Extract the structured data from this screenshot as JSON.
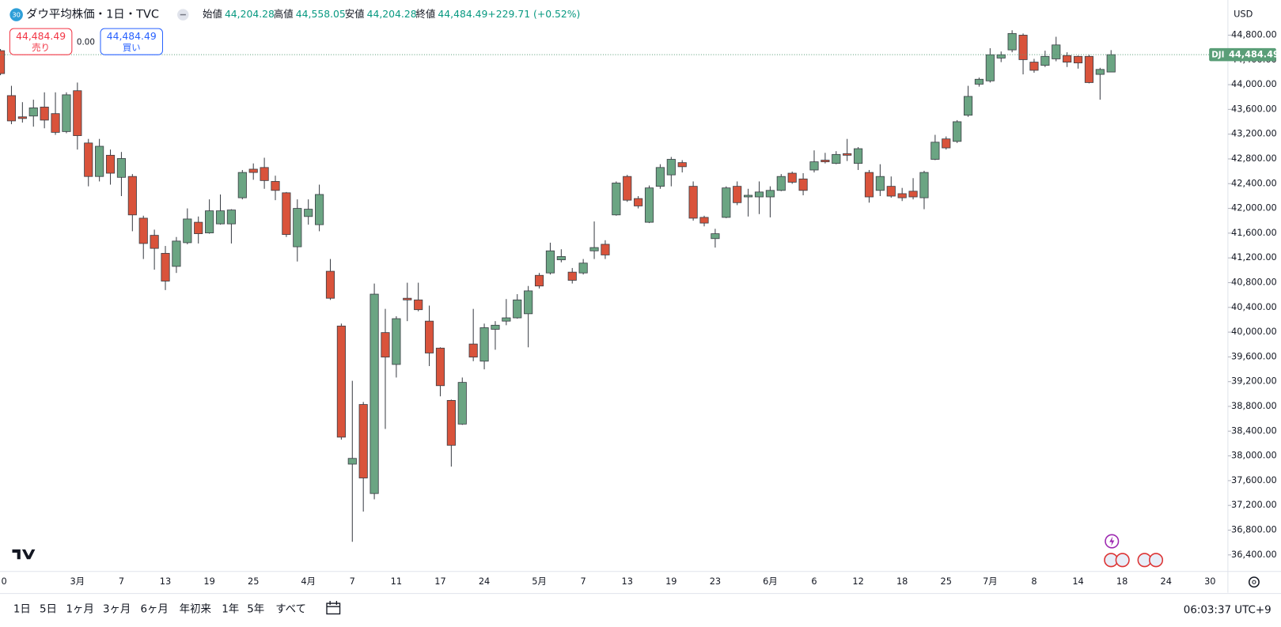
{
  "header": {
    "badge": "30",
    "title": "ダウ平均株価・1日・TVC",
    "open_label": "始値",
    "open": "44,204.28",
    "high_label": "高値",
    "high": "44,558.05",
    "low_label": "安値",
    "low": "44,204.28",
    "close_label": "終値",
    "close": "44,484.49",
    "change": "+229.71 (+0.52%)"
  },
  "trade": {
    "sell_price": "44,484.49",
    "sell_label": "売り",
    "spread": "0.00",
    "buy_price": "44,484.49",
    "buy_label": "買い"
  },
  "currency": "USD",
  "ranges": [
    "1日",
    "5日",
    "1ヶ月",
    "3ヶ月",
    "6ヶ月",
    "年初来",
    "1年",
    "5年",
    "すべて"
  ],
  "clock": "06:03:37 UTC+9",
  "chart_data": {
    "type": "candlestick",
    "up_color": "#6ba583",
    "down_color": "#d9533b",
    "grid": false,
    "ylim": [
      36132,
      45368
    ],
    "yticks": [
      {
        "value": 36400,
        "label": "36,400.00"
      },
      {
        "value": 36800,
        "label": "36,800.00"
      },
      {
        "value": 37200,
        "label": "37,200.00"
      },
      {
        "value": 37600,
        "label": "37,600.00"
      },
      {
        "value": 38000,
        "label": "38,000.00"
      },
      {
        "value": 38400,
        "label": "38,400.00"
      },
      {
        "value": 38800,
        "label": "38,800.00"
      },
      {
        "value": 39200,
        "label": "39,200.00"
      },
      {
        "value": 39600,
        "label": "39,600.00"
      },
      {
        "value": 40000,
        "label": "40,000.00"
      },
      {
        "value": 40400,
        "label": "40,400.00"
      },
      {
        "value": 40800,
        "label": "40,800.00"
      },
      {
        "value": 41200,
        "label": "41,200.00"
      },
      {
        "value": 41600,
        "label": "41,600.00"
      },
      {
        "value": 42000,
        "label": "42,000.00"
      },
      {
        "value": 42400,
        "label": "42,400.00"
      },
      {
        "value": 42800,
        "label": "42,800.00"
      },
      {
        "value": 43200,
        "label": "43,200.00"
      },
      {
        "value": 43600,
        "label": "43,600.00"
      },
      {
        "value": 44000,
        "label": "44,000.00"
      },
      {
        "value": 44400,
        "label": "44,400.00"
      },
      {
        "value": 44800,
        "label": "44,800.00"
      }
    ],
    "last_price": {
      "name": "DJI",
      "value": 44484.49,
      "value_label": "44,484.49",
      "color": "#5a9e78"
    },
    "categories": [
      "0",
      null,
      null,
      null,
      null,
      null,
      null,
      "3月",
      null,
      null,
      null,
      "7",
      null,
      null,
      null,
      "13",
      null,
      null,
      null,
      "19",
      null,
      null,
      null,
      "25",
      null,
      null,
      null,
      null,
      "4月",
      null,
      null,
      null,
      "7",
      null,
      null,
      null,
      "11",
      null,
      null,
      null,
      "17",
      null,
      null,
      null,
      "24",
      null,
      null,
      null,
      null,
      "5月",
      null,
      null,
      null,
      "7",
      null,
      null,
      null,
      "13",
      null,
      null,
      null,
      "19",
      null,
      null,
      null,
      "23",
      null,
      null,
      null,
      null,
      "6月",
      null,
      null,
      null,
      "6",
      null,
      null,
      null,
      "12",
      null,
      null,
      null,
      "18",
      null,
      null,
      null,
      "25",
      null,
      null,
      null,
      "7月",
      null,
      null,
      null,
      "8",
      null,
      null,
      null,
      "14",
      null,
      null,
      null,
      "18",
      null,
      null,
      null,
      "24",
      null,
      null,
      null,
      "30"
    ],
    "open": [
      44549,
      43823,
      43480,
      43493,
      43638,
      43532,
      43242,
      43902,
      43057,
      42516,
      42859,
      42502,
      42516,
      41842,
      41565,
      41274,
      41063,
      41446,
      41776,
      41604,
      41750,
      41750,
      42172,
      42634,
      42661,
      42436,
      42252,
      41380,
      41869,
      41737,
      40984,
      40099,
      37867,
      38831,
      37392,
      39993,
      39478,
      40548,
      40521,
      40178,
      39742,
      38897,
      38514,
      39808,
      39531,
      40046,
      40178,
      40231,
      40297,
      40918,
      40957,
      41169,
      40970,
      40957,
      41314,
      41420,
      41895,
      42516,
      42159,
      41776,
      42357,
      42542,
      42740,
      42357,
      41855,
      41512,
      41855,
      42357,
      42186,
      42186,
      42186,
      42291,
      42569,
      42476,
      42621,
      42780,
      42727,
      42885,
      42727,
      42581,
      42291,
      42357,
      42238,
      42278,
      42172,
      42793,
      43123,
      43083,
      43506,
      44008,
      44061,
      44430,
      44562,
      44800,
      44364,
      44312,
      44417,
      44470,
      44457,
      44457,
      44166,
      44204.28,
      null,
      null,
      null,
      null,
      null,
      null,
      null,
      null,
      null
    ],
    "high": [
      44576,
      43981,
      43717,
      43757,
      43876,
      43876,
      43876,
      44034,
      43123,
      43123,
      42951,
      42912,
      42555,
      41882,
      41657,
      41393,
      41538,
      42000,
      41869,
      42146,
      42225,
      41987,
      42621,
      42727,
      42819,
      42529,
      42265,
      42146,
      42146,
      42384,
      41182,
      40138,
      39214,
      38871,
      40786,
      40376,
      40257,
      40799,
      40799,
      40429,
      39755,
      38910,
      39267,
      40376,
      40138,
      40178,
      40535,
      40614,
      40746,
      40957,
      41446,
      41340,
      41037,
      41182,
      41789,
      41486,
      42436,
      42542,
      42199,
      42370,
      42714,
      42832,
      42780,
      42436,
      41882,
      41670,
      42357,
      42436,
      42317,
      42436,
      42357,
      42555,
      42595,
      42569,
      42938,
      42898,
      42925,
      43123,
      42991,
      42621,
      42714,
      42516,
      42331,
      42489,
      42608,
      43189,
      43163,
      43427,
      43981,
      44114,
      44589,
      44536,
      44879,
      44827,
      44417,
      44549,
      44774,
      44523,
      44470,
      44483,
      44272,
      44558.05,
      null,
      null,
      null,
      null,
      null,
      null,
      null,
      null,
      null
    ],
    "low": [
      44153,
      43361,
      43387,
      43321,
      43295,
      43189,
      43215,
      42951,
      42357,
      42436,
      42384,
      42199,
      41631,
      41182,
      41010,
      40680,
      40957,
      41420,
      41433,
      41591,
      41737,
      41433,
      42146,
      42463,
      42317,
      42133,
      41538,
      41142,
      41737,
      41631,
      40521,
      38263,
      36612,
      37101,
      37299,
      38435,
      39267,
      40178,
      40337,
      39452,
      38963,
      37827,
      38501,
      39531,
      39399,
      39716,
      40112,
      40218,
      39755,
      40706,
      40931,
      41129,
      40786,
      40931,
      41182,
      41182,
      41882,
      42106,
      42000,
      41763,
      42317,
      42357,
      42581,
      41802,
      41710,
      41367,
      41842,
      42053,
      41869,
      41908,
      41855,
      42278,
      42397,
      42212,
      42581,
      42727,
      42714,
      42766,
      42621,
      42093,
      42199,
      42172,
      42119,
      42146,
      41987,
      42780,
      42951,
      43057,
      43480,
      43968,
      44034,
      44364,
      44523,
      44166,
      44193,
      44285,
      44378,
      44285,
      44259,
      44021,
      43757,
      44204.28,
      null,
      null,
      null,
      null,
      null,
      null,
      null,
      null,
      null
    ],
    "close": [
      44179,
      43414,
      43453,
      43625,
      43427,
      43229,
      43836,
      43176,
      42516,
      43004,
      42569,
      42806,
      41895,
      41433,
      41354,
      40825,
      41472,
      41829,
      41591,
      41961,
      41961,
      41974,
      42581,
      42581,
      42450,
      42291,
      41578,
      42000,
      41987,
      42225,
      40548,
      38303,
      37960,
      37643,
      40614,
      39597,
      40218,
      40521,
      40363,
      39663,
      39135,
      38171,
      39188,
      39597,
      40072,
      40112,
      40231,
      40521,
      40667,
      40746,
      41314,
      41222,
      40838,
      41116,
      41367,
      41248,
      42410,
      42133,
      42040,
      42331,
      42661,
      42793,
      42674,
      41842,
      41763,
      41591,
      42331,
      42093,
      42212,
      42265,
      42291,
      42516,
      42423,
      42291,
      42753,
      42753,
      42872,
      42859,
      42965,
      42186,
      42516,
      42199,
      42172,
      42186,
      42581,
      43070,
      42978,
      43401,
      43810,
      44087,
      44483,
      44483,
      44827,
      44404,
      44232,
      44457,
      44642,
      44364,
      44351,
      44034,
      44246,
      44484.49,
      null,
      null,
      null,
      null,
      null,
      null,
      null,
      null,
      null
    ]
  }
}
